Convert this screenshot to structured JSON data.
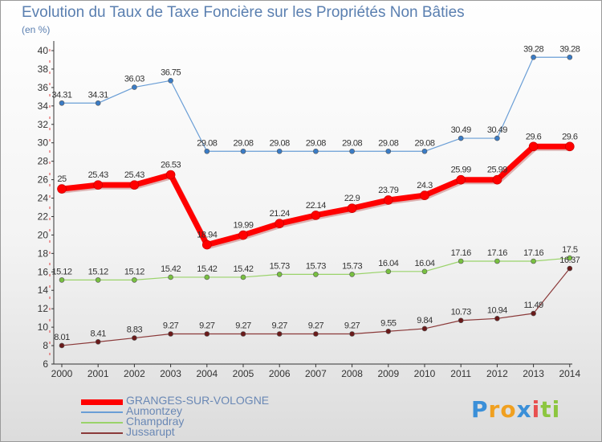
{
  "chart_data": {
    "type": "line",
    "title": "Evolution du Taux de Taxe Foncière sur les Propriétés Non Bâties",
    "ylabel": "(en %)",
    "xlabel": "",
    "x": [
      "2000",
      "2001",
      "2002",
      "2003",
      "2004",
      "2005",
      "2006",
      "2007",
      "2008",
      "2009",
      "2010",
      "2011",
      "2012",
      "2013",
      "2014"
    ],
    "ylim": [
      6,
      40
    ],
    "yticks": [
      6,
      8,
      10,
      12,
      14,
      16,
      18,
      20,
      22,
      24,
      26,
      28,
      30,
      32,
      34,
      36,
      38,
      40
    ],
    "grid": false,
    "legend_position": "bottom-left",
    "series": [
      {
        "name": "GRANGES-SUR-VOLOGNE",
        "color": "#ff0000",
        "marker": "#ff0000",
        "values": [
          25,
          25.43,
          25.43,
          26.53,
          18.94,
          19.99,
          21.24,
          22.14,
          22.9,
          23.79,
          24.3,
          25.99,
          25.99,
          29.6,
          29.6
        ],
        "labels": [
          "25",
          "25.43",
          "25.43",
          "26.53",
          "18.94",
          "19.99",
          "21.24",
          "22.14",
          "22.9",
          "23.79",
          "24.3",
          "25.99",
          "25.99",
          "29.6",
          "29.6"
        ]
      },
      {
        "name": "Aumontzey",
        "color": "#6a9ed6",
        "marker": "#3a7cc6",
        "values": [
          34.31,
          34.31,
          36.03,
          36.75,
          29.08,
          29.08,
          29.08,
          29.08,
          29.08,
          29.08,
          29.08,
          30.49,
          30.49,
          39.28,
          39.28
        ],
        "labels": [
          "34.31",
          "34.31",
          "36.03",
          "36.75",
          "29.08",
          "29.08",
          "29.08",
          "29.08",
          "29.08",
          "29.08",
          "29.08",
          "30.49",
          "30.49",
          "39.28",
          "39.28"
        ]
      },
      {
        "name": "Champdray",
        "color": "#9ad36a",
        "marker": "#78c040",
        "values": [
          15.12,
          15.12,
          15.12,
          15.42,
          15.42,
          15.42,
          15.73,
          15.73,
          15.73,
          16.04,
          16.04,
          17.16,
          17.16,
          17.16,
          17.5
        ],
        "labels": [
          "15.12",
          "15.12",
          "15.12",
          "15.42",
          "15.42",
          "15.42",
          "15.73",
          "15.73",
          "15.73",
          "16.04",
          "16.04",
          "17.16",
          "17.16",
          "17.16",
          "17.5"
        ]
      },
      {
        "name": "Jussarupt",
        "color": "#8b3a3a",
        "marker": "#6a1a1a",
        "values": [
          8.01,
          8.41,
          8.83,
          9.27,
          9.27,
          9.27,
          9.27,
          9.27,
          9.27,
          9.55,
          9.84,
          10.73,
          10.94,
          11.49,
          16.37
        ],
        "labels": [
          "8.01",
          "8.41",
          "8.83",
          "9.27",
          "9.27",
          "9.27",
          "9.27",
          "9.27",
          "9.27",
          "9.55",
          "9.84",
          "10.73",
          "10.94",
          "11.49",
          "16.37"
        ]
      }
    ]
  },
  "logo": {
    "letters": [
      "P",
      "r",
      "o",
      "x",
      "i",
      "t",
      "i"
    ],
    "colors": [
      "#3a8fd8",
      "#f0a020",
      "#f0a020",
      "#3a8fd8",
      "#e85050",
      "#8cc63f",
      "#8cc63f"
    ]
  }
}
